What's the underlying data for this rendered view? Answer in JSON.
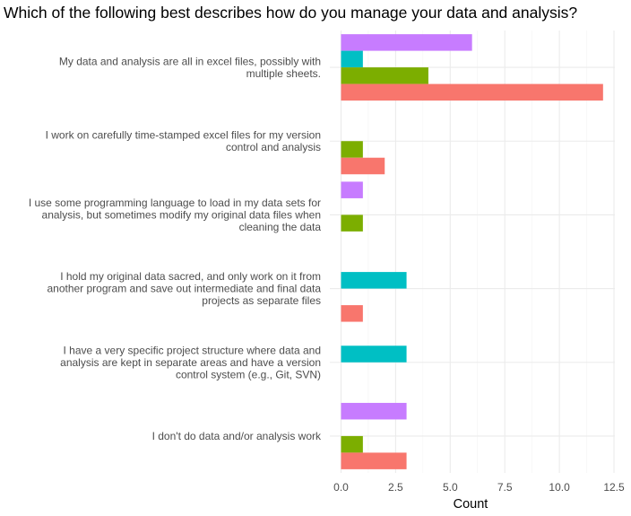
{
  "chart_data": {
    "type": "bar",
    "orientation": "horizontal",
    "title": "Which of the following best describes how do you manage your data and analysis?",
    "xlabel": "Count",
    "ylabel": "",
    "xlim": [
      0,
      12.5
    ],
    "xticks": [
      "0.0",
      "2.5",
      "5.0",
      "7.5",
      "10.0",
      "12.5"
    ],
    "grid": true,
    "legend": "none",
    "categories": [
      [
        "My data and analysis are all in excel files, possibly with",
        "multiple sheets."
      ],
      [
        "I work on carefully time-stamped excel files for my version",
        "control and analysis"
      ],
      [
        "I use some programming language to load in my data sets for",
        "analysis, but sometimes modify my original data files when",
        "cleaning the data"
      ],
      [
        "I hold my original data sacred, and only work on it from",
        "another program and save out intermediate and final data",
        "projects as separate files"
      ],
      [
        "I have a very specific project structure where data and",
        "analysis are kept in separate areas and have a version",
        "control system (e.g., Git, SVN)"
      ],
      [
        "I don't do data and/or analysis work"
      ]
    ],
    "series": [
      {
        "color": "#c77cff",
        "values": [
          6,
          0,
          1,
          0,
          0,
          3
        ]
      },
      {
        "color": "#00bfc4",
        "values": [
          1,
          0,
          0,
          3,
          3,
          0
        ]
      },
      {
        "color": "#7cae00",
        "values": [
          4,
          1,
          1,
          0,
          0,
          1
        ]
      },
      {
        "color": "#f8766d",
        "values": [
          12,
          2,
          0,
          1,
          0,
          3
        ]
      }
    ]
  }
}
